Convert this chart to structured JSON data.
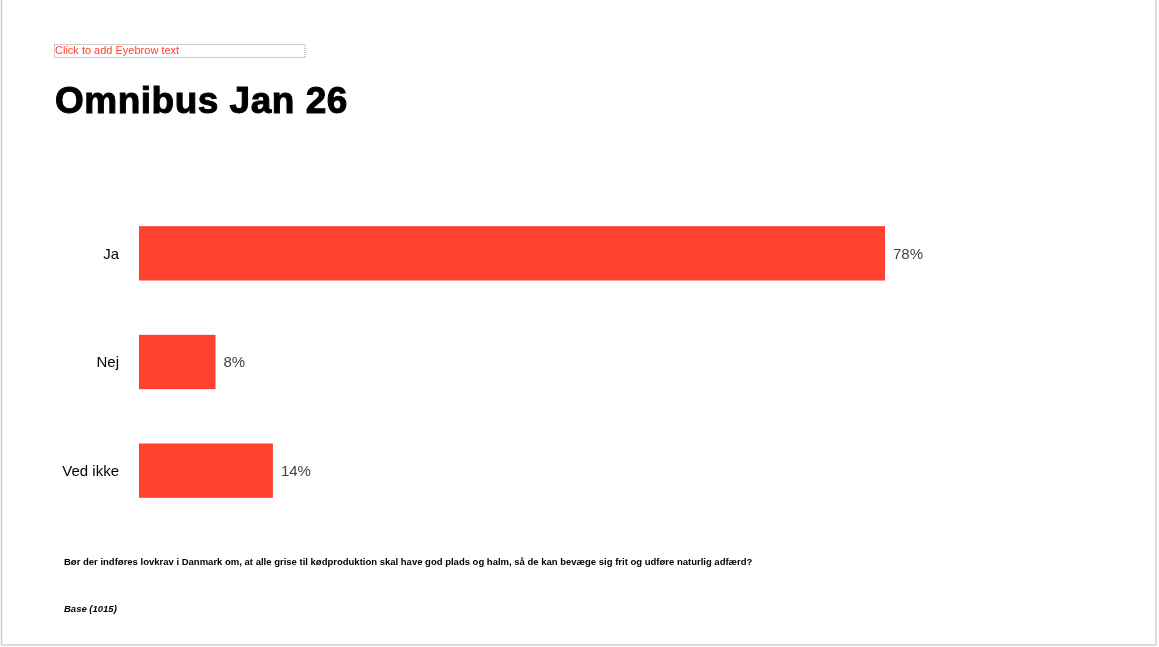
{
  "chart_data": {
    "type": "bar",
    "orientation": "horizontal",
    "title": "Omnibus Jan 26",
    "annotations": [
      "Click to add Eyebrow text",
      "Bør der indføres lovkrav i Danmark om, at alle grise til kødproduktion skal have god plads og halm, så de kan bevæge sig frit og udføre naturlig adfærd?",
      "Base (1015)"
    ],
    "categories": [
      "Ja",
      "Nej",
      "Ved ikke"
    ],
    "values": [
      78,
      8,
      14
    ],
    "value_labels": [
      "78%",
      "8%",
      "14%"
    ],
    "color": "#ff4230"
  }
}
